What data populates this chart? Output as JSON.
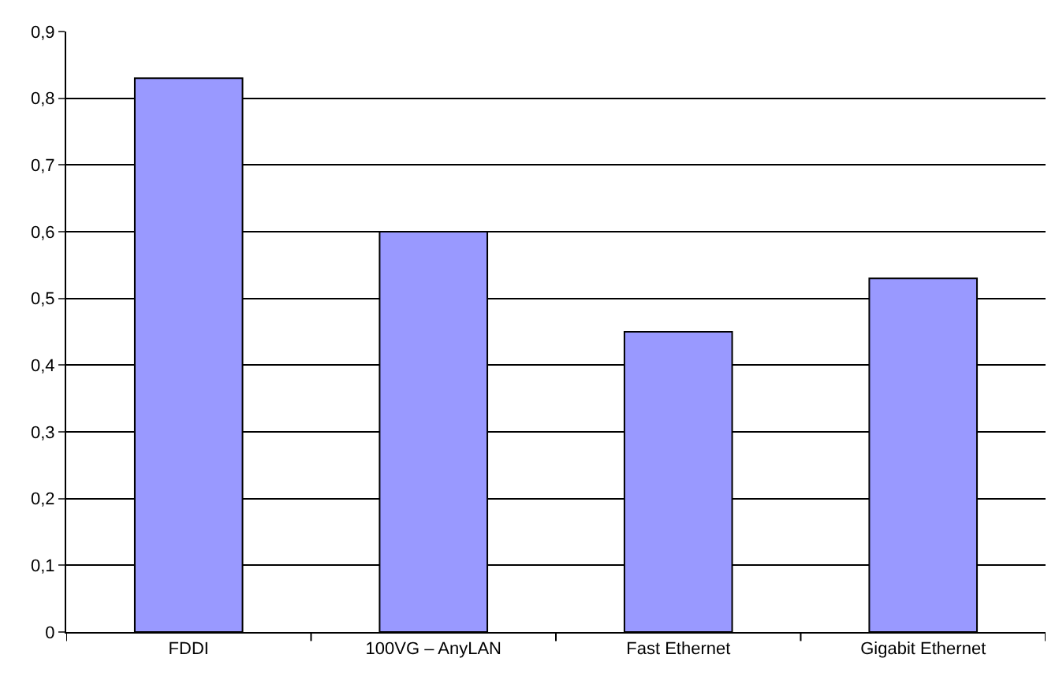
{
  "chart_data": {
    "type": "bar",
    "categories": [
      "FDDI",
      "100VG – AnyLAN",
      "Fast Ethernet",
      "Gigabit Ethernet"
    ],
    "values": [
      0.83,
      0.6,
      0.45,
      0.53
    ],
    "color": "#9999ff",
    "ylim": [
      0,
      0.9
    ],
    "yticks": [
      0,
      {
        "value": 0.1,
        "label": "0,1"
      },
      {
        "value": 0.2,
        "label": "0,2"
      },
      {
        "value": 0.3,
        "label": "0,3"
      },
      {
        "value": 0.4,
        "label": "0,4"
      },
      {
        "value": 0.5,
        "label": "0,5"
      },
      {
        "value": 0.6,
        "label": "0,6"
      },
      {
        "value": 0.7,
        "label": "0,7"
      },
      {
        "value": 0.8,
        "label": "0,8"
      },
      {
        "value": 0.9,
        "label": "0,9"
      }
    ],
    "grid": "y"
  }
}
